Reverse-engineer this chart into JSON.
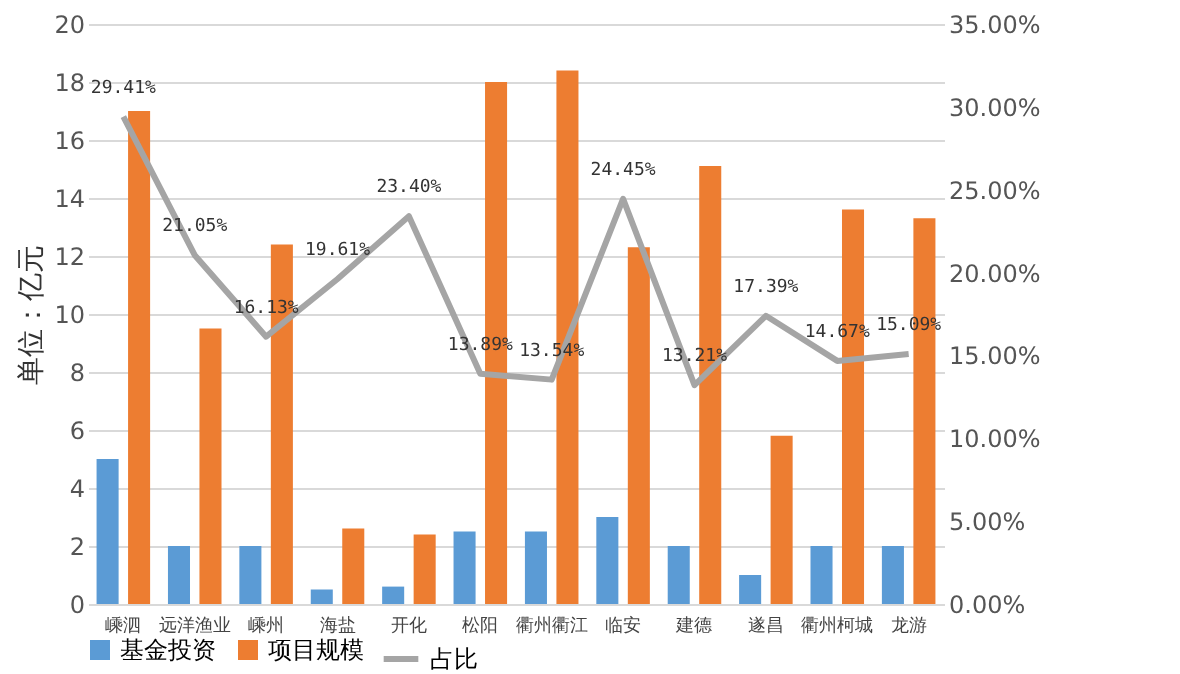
{
  "chart_data": {
    "type": "bar",
    "ylabel": "单位：亿元",
    "categories": [
      "嵊泗",
      "远洋渔业",
      "嵊州",
      "海盐",
      "开化",
      "松阳",
      "衢州衢江",
      "临安",
      "建德",
      "遂昌",
      "衢州柯城",
      "龙游"
    ],
    "series": [
      {
        "name": "基金投资",
        "color": "#5b9bd5",
        "values": [
          5,
          2,
          2,
          0.5,
          0.6,
          2.5,
          2.5,
          3,
          2,
          1,
          2,
          2
        ]
      },
      {
        "name": "项目规模",
        "color": "#ed7d31",
        "values": [
          17,
          9.5,
          12.4,
          2.6,
          2.4,
          18,
          18.4,
          12.3,
          15.1,
          5.8,
          13.6,
          13.3
        ]
      },
      {
        "name": "占比",
        "type": "line",
        "axis": "y2",
        "color": "#a5a5a5",
        "values": [
          29.41,
          21.05,
          16.13,
          19.61,
          23.4,
          13.89,
          13.54,
          24.45,
          13.21,
          17.39,
          14.67,
          15.09
        ],
        "value_labels": [
          "29.41%",
          "21.05%",
          "16.13%",
          "19.61%",
          "23.40%",
          "13.89%",
          "13.54%",
          "24.45%",
          "13.21%",
          "17.39%",
          "14.67%",
          "15.09%"
        ]
      }
    ],
    "ylim": [
      0,
      20
    ],
    "yticks": [
      0,
      2,
      4,
      6,
      8,
      10,
      12,
      14,
      16,
      18,
      20
    ],
    "y2lim": [
      0,
      35
    ],
    "y2ticks": [
      {
        "value": 0,
        "label": "0.00%"
      },
      {
        "value": 5,
        "label": "5.00%"
      },
      {
        "value": 10,
        "label": "10.00%"
      },
      {
        "value": 15,
        "label": "15.00%"
      },
      {
        "value": 20,
        "label": "20.00%"
      },
      {
        "value": 25,
        "label": "25.00%"
      },
      {
        "value": 30,
        "label": "30.00%"
      },
      {
        "value": 35,
        "label": "35.00%"
      }
    ],
    "grid": "y",
    "legend": "bottom",
    "marker": "none",
    "line_style": "solid"
  }
}
